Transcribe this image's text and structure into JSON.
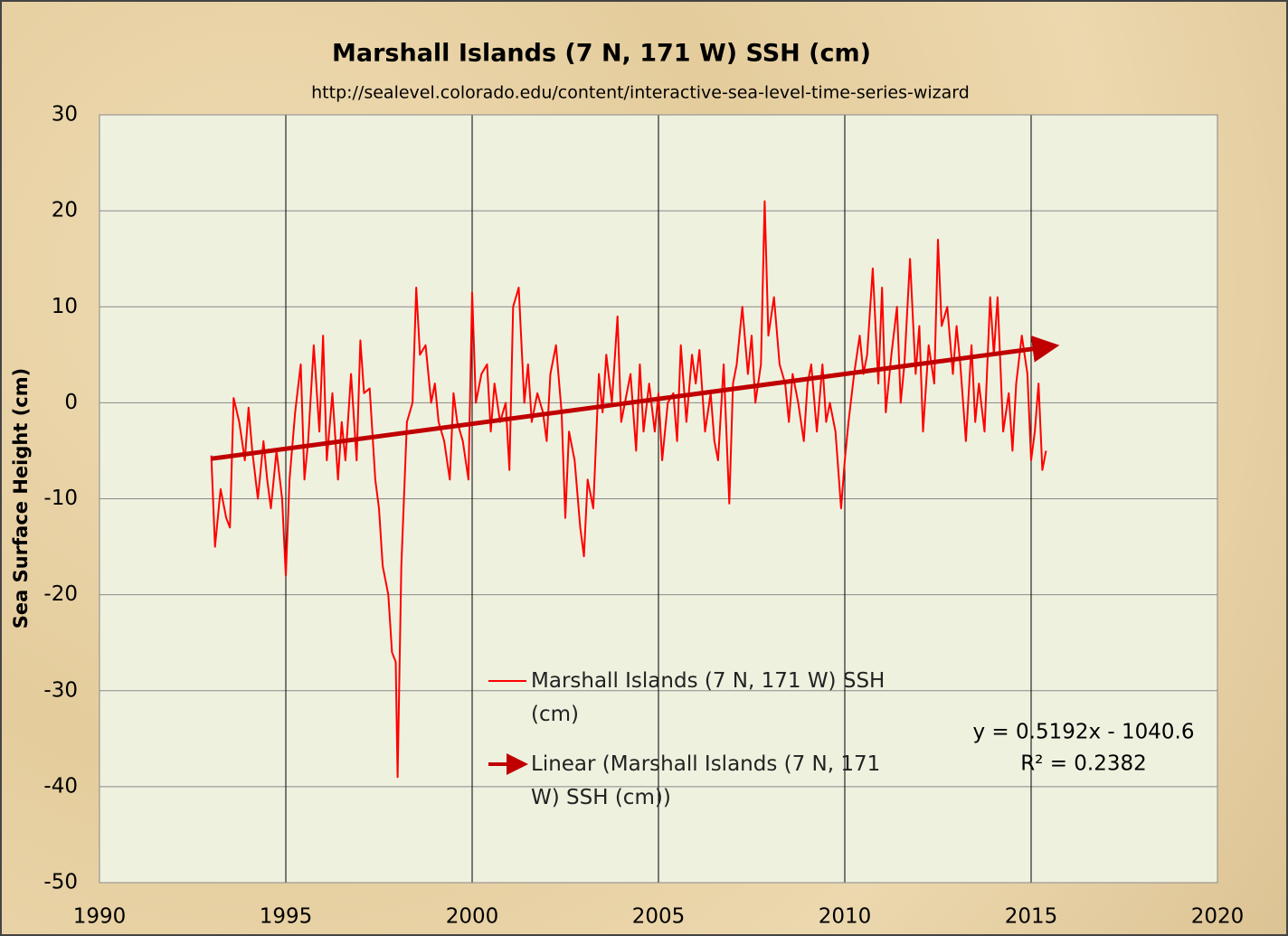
{
  "chart_data": {
    "type": "line",
    "title": "Marshall Islands (7 N, 171 W) SSH (cm)",
    "subtitle": "http://sealevel.colorado.edu/content/interactive-sea-level-time-series-wizard",
    "y_label": "Sea Surface Height (cm)",
    "xlim": [
      1990,
      2020
    ],
    "xticks": [
      1990,
      1995,
      2000,
      2005,
      2010,
      2015,
      2020
    ],
    "ylim": [
      -50,
      30
    ],
    "yticks": [
      -50,
      -40,
      -30,
      -20,
      -10,
      0,
      10,
      20,
      30
    ],
    "grid": true,
    "series": [
      {
        "name": "Marshall Islands (7 N, 171 W) SSH (cm)",
        "color": "#ff0000",
        "x": [
          1993.0,
          1993.1,
          1993.25,
          1993.4,
          1993.5,
          1993.6,
          1993.75,
          1993.9,
          1994.0,
          1994.1,
          1994.25,
          1994.4,
          1994.5,
          1994.6,
          1994.75,
          1994.9,
          1995.0,
          1995.1,
          1995.25,
          1995.4,
          1995.5,
          1995.6,
          1995.75,
          1995.9,
          1996.0,
          1996.1,
          1996.25,
          1996.4,
          1996.5,
          1996.6,
          1996.75,
          1996.9,
          1997.0,
          1997.1,
          1997.25,
          1997.4,
          1997.5,
          1997.6,
          1997.75,
          1997.85,
          1997.95,
          1998.0,
          1998.1,
          1998.25,
          1998.4,
          1998.5,
          1998.6,
          1998.75,
          1998.9,
          1999.0,
          1999.1,
          1999.25,
          1999.4,
          1999.5,
          1999.6,
          1999.75,
          1999.9,
          2000.0,
          2000.1,
          2000.25,
          2000.4,
          2000.5,
          2000.6,
          2000.75,
          2000.9,
          2001.0,
          2001.1,
          2001.25,
          2001.4,
          2001.5,
          2001.6,
          2001.75,
          2001.9,
          2002.0,
          2002.1,
          2002.25,
          2002.4,
          2002.5,
          2002.6,
          2002.75,
          2002.9,
          2003.0,
          2003.1,
          2003.25,
          2003.4,
          2003.5,
          2003.6,
          2003.75,
          2003.9,
          2004.0,
          2004.1,
          2004.25,
          2004.4,
          2004.5,
          2004.6,
          2004.75,
          2004.9,
          2005.0,
          2005.1,
          2005.25,
          2005.4,
          2005.5,
          2005.6,
          2005.75,
          2005.9,
          2006.0,
          2006.1,
          2006.25,
          2006.4,
          2006.5,
          2006.6,
          2006.75,
          2006.9,
          2007.0,
          2007.1,
          2007.25,
          2007.4,
          2007.5,
          2007.6,
          2007.75,
          2007.85,
          2007.95,
          2008.1,
          2008.25,
          2008.4,
          2008.5,
          2008.6,
          2008.75,
          2008.9,
          2009.0,
          2009.1,
          2009.25,
          2009.4,
          2009.5,
          2009.6,
          2009.75,
          2009.9,
          2010.0,
          2010.1,
          2010.25,
          2010.4,
          2010.5,
          2010.6,
          2010.75,
          2010.9,
          2011.0,
          2011.1,
          2011.25,
          2011.4,
          2011.5,
          2011.6,
          2011.75,
          2011.9,
          2012.0,
          2012.1,
          2012.25,
          2012.4,
          2012.5,
          2012.6,
          2012.75,
          2012.9,
          2013.0,
          2013.1,
          2013.25,
          2013.4,
          2013.5,
          2013.6,
          2013.75,
          2013.9,
          2014.0,
          2014.1,
          2014.25,
          2014.4,
          2014.5,
          2014.6,
          2014.75,
          2014.9,
          2015.0,
          2015.1,
          2015.2,
          2015.3,
          2015.4
        ],
        "values": [
          -5.5,
          -15,
          -9,
          -12,
          -13,
          0.5,
          -2,
          -6,
          -0.5,
          -5,
          -10,
          -4,
          -8,
          -11,
          -5,
          -10,
          -18,
          -8,
          -1,
          4,
          -8,
          -4,
          6,
          -3,
          7,
          -6,
          1,
          -8,
          -2,
          -6,
          3,
          -6,
          6.5,
          1,
          1.5,
          -8,
          -11,
          -17,
          -20,
          -26,
          -27,
          -39,
          -17,
          -2,
          0,
          12,
          5,
          6,
          0,
          2,
          -2,
          -4,
          -8,
          1,
          -2,
          -4,
          -8,
          11.5,
          0,
          3,
          4,
          -3,
          2,
          -2,
          0,
          -7,
          10,
          12,
          0,
          4,
          -2,
          1,
          -1,
          -4,
          3,
          6,
          -1,
          -12,
          -3,
          -6,
          -13,
          -16,
          -8,
          -11,
          3,
          -1,
          5,
          0,
          9,
          -2,
          0,
          3,
          -5,
          4,
          -3,
          2,
          -3,
          1,
          -6,
          0,
          1,
          -4,
          6,
          -2,
          5,
          2,
          5.5,
          -3,
          1,
          -4,
          -6,
          4,
          -10.5,
          2,
          4,
          10,
          3,
          7,
          0,
          4,
          21,
          7,
          11,
          4,
          2,
          -2,
          3,
          0,
          -4,
          2,
          4,
          -3,
          4,
          -2,
          0,
          -3,
          -11,
          -6,
          -2,
          3,
          7,
          3,
          5,
          14,
          2,
          12,
          -1,
          5,
          10,
          0,
          4,
          15,
          3,
          8,
          -3,
          6,
          2,
          17,
          8,
          10,
          3,
          8,
          4,
          -4,
          6,
          -2,
          2,
          -3,
          11,
          5,
          11,
          -3,
          1,
          -5,
          2,
          7,
          3,
          -6,
          -3,
          2,
          -7,
          -5
        ]
      },
      {
        "name": "Linear (Marshall Islands (7 N, 171 W) SSH (cm))",
        "color": "#c00000",
        "x": [
          1993.0,
          2015.4
        ],
        "values": [
          -5.83,
          5.8
        ],
        "arrow": true
      }
    ],
    "annotations": [
      "y = 0.5192x - 1040.6",
      "R² = 0.2382"
    ]
  }
}
